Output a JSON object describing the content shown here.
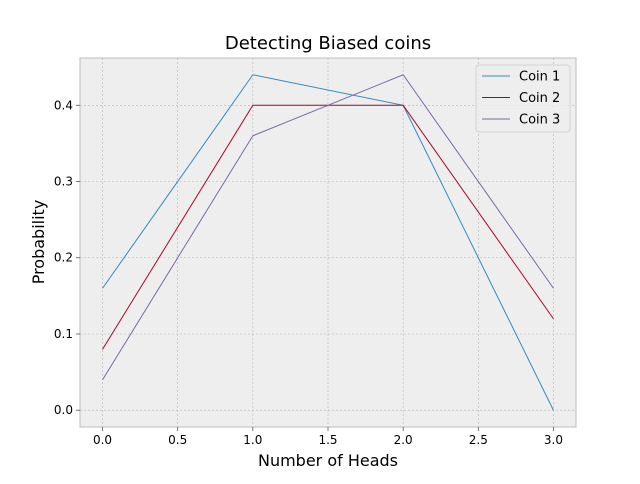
{
  "chart_data": {
    "type": "line",
    "title": "Detecting Biased coins",
    "xlabel": "Number of Heads",
    "ylabel": "Probability",
    "x": [
      0,
      1,
      2,
      3
    ],
    "xlim": [
      -0.15,
      3.15
    ],
    "ylim": [
      -0.022,
      0.462
    ],
    "xticks": [
      0.0,
      0.5,
      1.0,
      1.5,
      2.0,
      2.5,
      3.0
    ],
    "xtick_labels": [
      "0.0",
      "0.5",
      "1.0",
      "1.5",
      "2.0",
      "2.5",
      "3.0"
    ],
    "yticks": [
      0.0,
      0.1,
      0.2,
      0.3,
      0.4
    ],
    "ytick_labels": [
      "0.0",
      "0.1",
      "0.2",
      "0.3",
      "0.4"
    ],
    "grid": true,
    "legend_position": "top-right",
    "series": [
      {
        "name": "Coin 1",
        "values": [
          0.16,
          0.44,
          0.4,
          0.0
        ],
        "color": "#348ABD"
      },
      {
        "name": "Coin 2",
        "values": [
          0.08,
          0.4,
          0.4,
          0.12
        ],
        "color": "#A60628"
      },
      {
        "name": "Coin 3",
        "values": [
          0.04,
          0.36,
          0.44,
          0.16
        ],
        "color": "#7A68A6"
      }
    ],
    "colors": {
      "plot_background": "#EEEEEE",
      "frame": "#BCBCBC",
      "grid": "#B2B2B2"
    }
  }
}
